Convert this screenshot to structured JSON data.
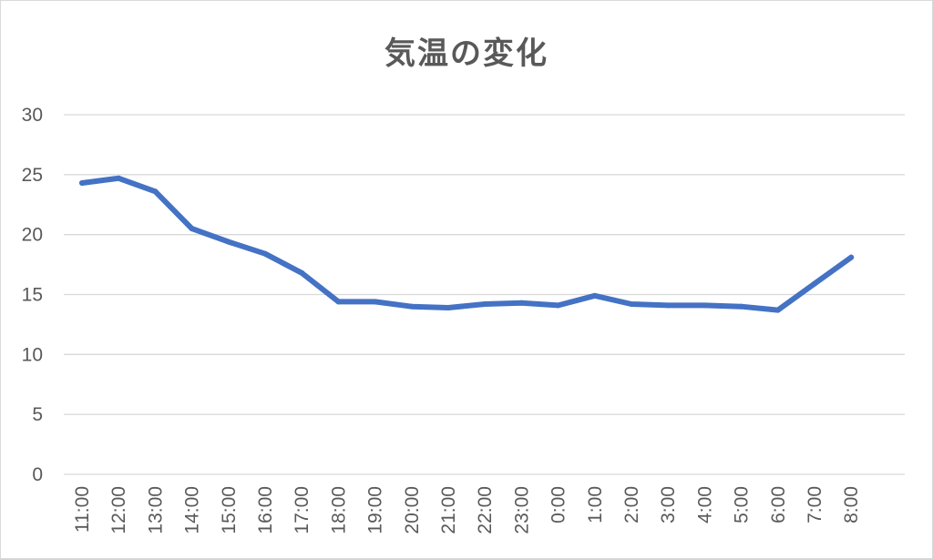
{
  "chart_data": {
    "type": "line",
    "title": "気温の変化",
    "categories": [
      "11:00",
      "12:00",
      "13:00",
      "14:00",
      "15:00",
      "16:00",
      "17:00",
      "18:00",
      "19:00",
      "20:00",
      "21:00",
      "22:00",
      "23:00",
      "0:00",
      "1:00",
      "2:00",
      "3:00",
      "4:00",
      "5:00",
      "6:00",
      "7:00",
      "8:00"
    ],
    "series": [
      {
        "values": [
          24.3,
          24.7,
          23.6,
          20.5,
          19.4,
          18.4,
          16.8,
          14.4,
          14.4,
          14.0,
          13.9,
          14.2,
          14.3,
          14.1,
          14.9,
          14.2,
          14.1,
          14.1,
          14.0,
          13.7,
          15.9,
          18.1
        ],
        "color": "#4472c4"
      }
    ],
    "ylim": [
      0,
      30
    ],
    "yticks": [
      0,
      5,
      10,
      15,
      20,
      25,
      30
    ],
    "xlabel": "",
    "ylabel": "",
    "grid": true,
    "legend": "none"
  }
}
